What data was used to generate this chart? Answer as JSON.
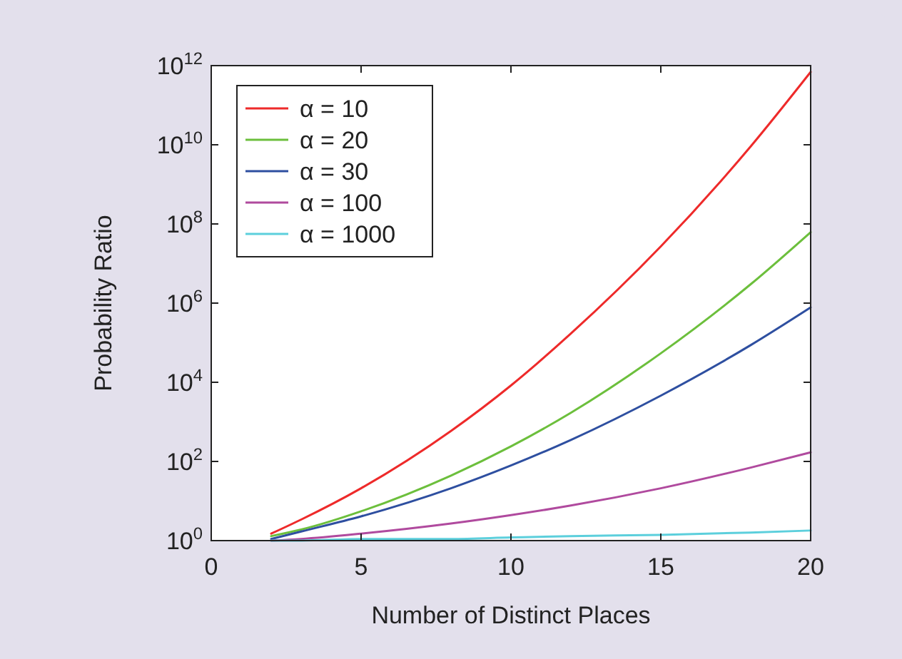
{
  "chart_data": {
    "type": "line",
    "xlabel": "Number of Distinct Places",
    "ylabel": "Probability Ratio",
    "log": "y",
    "grid": false,
    "legend": "top left",
    "line_style": "solid",
    "marker": "none",
    "x": [
      2,
      3,
      5,
      8,
      10,
      12,
      15,
      18,
      20
    ],
    "xlim": [
      0,
      20
    ],
    "xticks": [
      0,
      5,
      10,
      15,
      20
    ],
    "ylim": [
      1,
      1000000000000.0
    ],
    "yticks": [
      {
        "value": 1,
        "label": "10$^{0}$"
      },
      {
        "value": 100,
        "label": "10$^{2}$"
      },
      {
        "value": 10000,
        "label": "10$^{4}$"
      },
      {
        "value": 1000000,
        "label": "10$^{6}$"
      },
      {
        "value": 100000000,
        "label": "10$^{8}$"
      },
      {
        "value": 10000000000,
        "label": "10$^{10}$"
      },
      {
        "value": 1000000000000,
        "label": "10$^{12}$"
      }
    ],
    "series": [
      {
        "name": "α = 10",
        "color": "#ee2a2a",
        "values": [
          1.5,
          3.4,
          21,
          590,
          8300,
          170000,
          27000000,
          9100000000,
          690000000000
        ]
      },
      {
        "name": "α = 20",
        "color": "#6cbf3c",
        "values": [
          1.3,
          1.9,
          5.5,
          44,
          240,
          1700,
          54000,
          3000000,
          62000000
        ]
      },
      {
        "name": "α = 30",
        "color": "#2e4fa0",
        "values": [
          1.1,
          1.7,
          4.1,
          21,
          79,
          350,
          4600,
          87000,
          780000
        ]
      },
      {
        "name": "α = 100",
        "color": "#b04a9e",
        "values": [
          1.0,
          1.1,
          1.5,
          2.7,
          4.4,
          7.7,
          21,
          70,
          170
        ]
      },
      {
        "name": "α = 1000",
        "color": "#5ccfdc",
        "values": [
          1.0,
          1.0,
          1.1,
          1.1,
          1.2,
          1.3,
          1.4,
          1.6,
          1.8
        ]
      }
    ]
  }
}
